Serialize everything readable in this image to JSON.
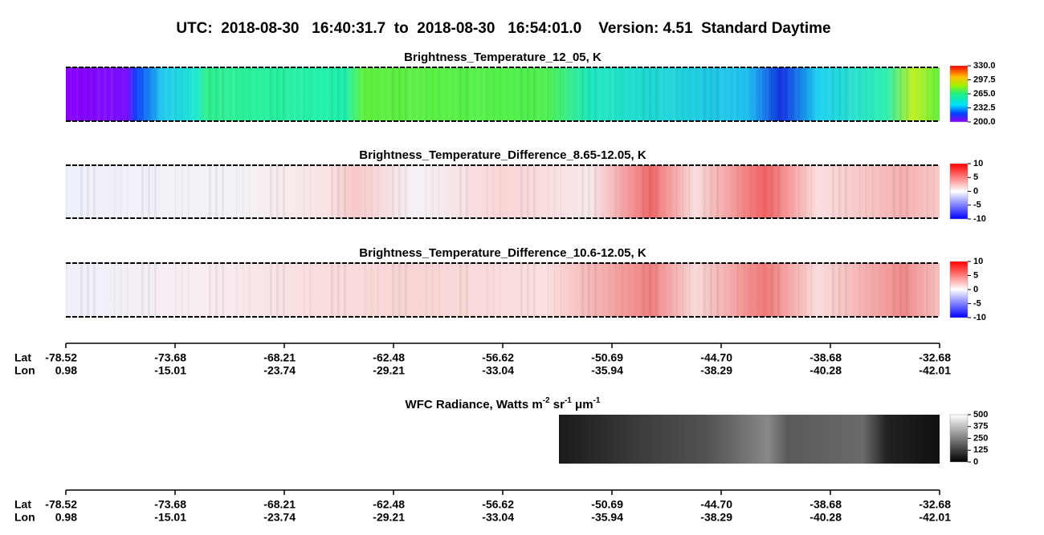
{
  "title": "UTC:  2018-08-30   16:40:31.7  to  2018-08-30   16:54:01.0    Version: 4.51  Standard Daytime",
  "panels": [
    {
      "title": "Brightness_Temperature_12_05, K",
      "colorbar": {
        "range": [
          200,
          330
        ],
        "ticks": [
          {
            "value": 330,
            "label": "330.0"
          },
          {
            "value": 297.5,
            "label": "297.5"
          },
          {
            "value": 265,
            "label": "265.0"
          },
          {
            "value": 232.5,
            "label": "232.5"
          },
          {
            "value": 200,
            "label": "200.0"
          }
        ]
      }
    },
    {
      "title": "Brightness_Temperature_Difference_8.65-12.05, K",
      "colorbar": {
        "range": [
          -10,
          10
        ],
        "ticks": [
          10,
          5,
          0,
          -5,
          -10
        ]
      }
    },
    {
      "title": "Brightness_Temperature_Difference_10.6-12.05, K",
      "colorbar": {
        "range": [
          -10,
          10
        ],
        "ticks": [
          10,
          5,
          0,
          -5,
          -10
        ]
      }
    }
  ],
  "wfc": {
    "title": [
      "WFC Radiance, Watts m",
      "-2",
      " sr",
      "-1",
      " μm",
      "-1"
    ],
    "colorbar": {
      "range": [
        0,
        500
      ],
      "ticks": [
        500,
        375,
        250,
        125,
        0
      ]
    }
  },
  "axis": {
    "lat_label": "Lat",
    "lon_label": "Lon",
    "lat": [
      "-78.52",
      "-73.68",
      "-68.21",
      "-62.48",
      "-56.62",
      "-50.69",
      "-44.70",
      "-38.68",
      "-32.68"
    ],
    "lon": [
      "0.98",
      "-15.01",
      "-23.74",
      "-29.21",
      "-33.04",
      "-35.94",
      "-38.29",
      "-40.28",
      "-42.01"
    ]
  }
}
